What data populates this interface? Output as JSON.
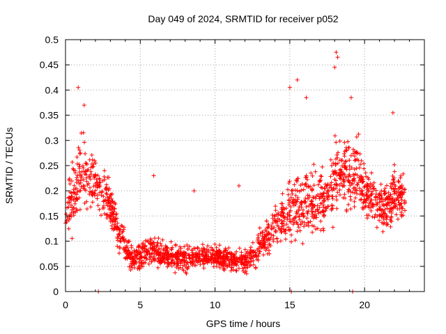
{
  "chart_data": {
    "type": "scatter",
    "title": "Day 049 of 2024, SRMTID for receiver p052",
    "xlabel": "GPS time / hours",
    "ylabel": "SRMTID / TECUs",
    "xlim": [
      0,
      24
    ],
    "ylim": [
      0,
      0.5
    ],
    "xticks": [
      0,
      5,
      10,
      15,
      20
    ],
    "xtick_labels": [
      "0",
      "5",
      "10",
      "15",
      "20"
    ],
    "yticks": [
      0,
      0.05,
      0.1,
      0.15,
      0.2,
      0.25,
      0.3,
      0.35,
      0.4,
      0.45,
      0.5
    ],
    "ytick_labels": [
      "0",
      "0.05",
      "0.1",
      "0.15",
      "0.2",
      "0.25",
      "0.3",
      "0.35",
      "0.4",
      "0.45",
      "0.5"
    ],
    "grid": true,
    "marker": "+",
    "series": [
      {
        "name": "SRMTID",
        "color": "#ff0000",
        "profile": {
          "description": "Approximate trend of the dense scatter; x = GPS hour, y = typical value, spread = vertical scatter",
          "x": [
            0.0,
            0.3,
            0.7,
            1.0,
            1.5,
            2.0,
            2.5,
            3.0,
            3.5,
            4.0,
            4.5,
            5.0,
            5.5,
            6.0,
            7.0,
            8.0,
            9.0,
            10.0,
            11.0,
            12.0,
            12.5,
            13.0,
            13.5,
            14.0,
            14.5,
            15.0,
            15.5,
            16.0,
            16.5,
            17.0,
            17.5,
            18.0,
            18.5,
            19.0,
            19.5,
            20.0,
            20.5,
            21.0,
            21.5,
            22.0,
            22.5,
            22.7
          ],
          "y": [
            0.15,
            0.18,
            0.2,
            0.24,
            0.22,
            0.22,
            0.2,
            0.17,
            0.12,
            0.09,
            0.06,
            0.07,
            0.09,
            0.08,
            0.07,
            0.065,
            0.07,
            0.07,
            0.065,
            0.06,
            0.07,
            0.09,
            0.11,
            0.13,
            0.14,
            0.16,
            0.17,
            0.18,
            0.17,
            0.18,
            0.19,
            0.22,
            0.24,
            0.23,
            0.24,
            0.2,
            0.19,
            0.17,
            0.16,
            0.2,
            0.19,
            0.18
          ],
          "spread": [
            0.05,
            0.07,
            0.08,
            0.08,
            0.07,
            0.07,
            0.06,
            0.05,
            0.04,
            0.03,
            0.025,
            0.03,
            0.035,
            0.03,
            0.025,
            0.025,
            0.025,
            0.025,
            0.025,
            0.025,
            0.03,
            0.035,
            0.035,
            0.04,
            0.05,
            0.06,
            0.07,
            0.07,
            0.07,
            0.07,
            0.07,
            0.08,
            0.08,
            0.07,
            0.07,
            0.06,
            0.05,
            0.05,
            0.05,
            0.06,
            0.05,
            0.05
          ]
        },
        "notable_points": [
          {
            "x": 0.85,
            "y": 0.405
          },
          {
            "x": 1.25,
            "y": 0.37
          },
          {
            "x": 15.0,
            "y": 0.405
          },
          {
            "x": 15.5,
            "y": 0.42
          },
          {
            "x": 16.1,
            "y": 0.385
          },
          {
            "x": 18.1,
            "y": 0.475
          },
          {
            "x": 18.2,
            "y": 0.465
          },
          {
            "x": 18.0,
            "y": 0.445
          },
          {
            "x": 19.1,
            "y": 0.385
          },
          {
            "x": 21.9,
            "y": 0.355
          },
          {
            "x": 5.9,
            "y": 0.23
          },
          {
            "x": 8.6,
            "y": 0.2
          },
          {
            "x": 11.6,
            "y": 0.21
          },
          {
            "x": 2.2,
            "y": 0.0
          },
          {
            "x": 15.1,
            "y": 0.0
          },
          {
            "x": 19.2,
            "y": 0.0
          }
        ]
      }
    ]
  }
}
